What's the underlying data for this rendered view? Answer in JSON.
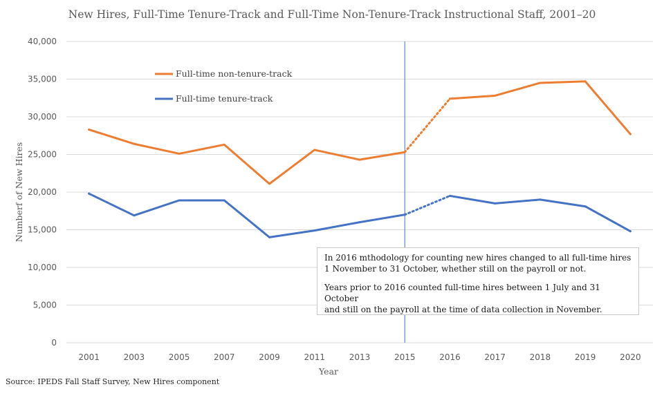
{
  "chart_data": {
    "type": "line",
    "title": "New Hires, Full-Time Tenure-Track and Full-Time Non-Tenure-Track Instructional Staff, 2001–20",
    "xlabel": "Year",
    "ylabel": "Numberf of New Hires",
    "categories": [
      "2001",
      "2003",
      "2005",
      "2007",
      "2009",
      "2011",
      "2013",
      "2015",
      "2016",
      "2017",
      "2018",
      "2019",
      "2020"
    ],
    "ylim": [
      0,
      40000
    ],
    "ytick_labels": [
      "0",
      "5,000",
      "10,000",
      "15,000",
      "20,000",
      "25,000",
      "30,000",
      "35,000",
      "40,000"
    ],
    "grid": true,
    "series": [
      {
        "name": "Full-time non-tenure-track",
        "color": "#ed7d31",
        "values": [
          28300,
          26400,
          25100,
          26300,
          21100,
          25600,
          24300,
          25300,
          32400,
          32800,
          34500,
          34700,
          27700
        ]
      },
      {
        "name": "Full-time tenure-track",
        "color": "#4472c4",
        "values": [
          19800,
          16900,
          18900,
          18900,
          14000,
          14900,
          16000,
          17000,
          19500,
          18500,
          19000,
          18100,
          14800
        ]
      }
    ],
    "dotted_segment": {
      "from": "2015",
      "to": "2016"
    },
    "reference_line": {
      "at": "2015",
      "color": "#4472c4"
    },
    "legend_position": "top-left",
    "annotation": {
      "line1": "In 2016 mthodology for counting new hires changed to all full-time hires",
      "line2": "1 November to 31 October, whether still on the payroll or not.",
      "line3": "Years prior to 2016 counted full-time hires between 1 July and 31 October",
      "line4": "and still on the payroll at the time of data collection in November."
    }
  },
  "source": "Source: IPEDS Fall Staff Survey, New Hires component"
}
